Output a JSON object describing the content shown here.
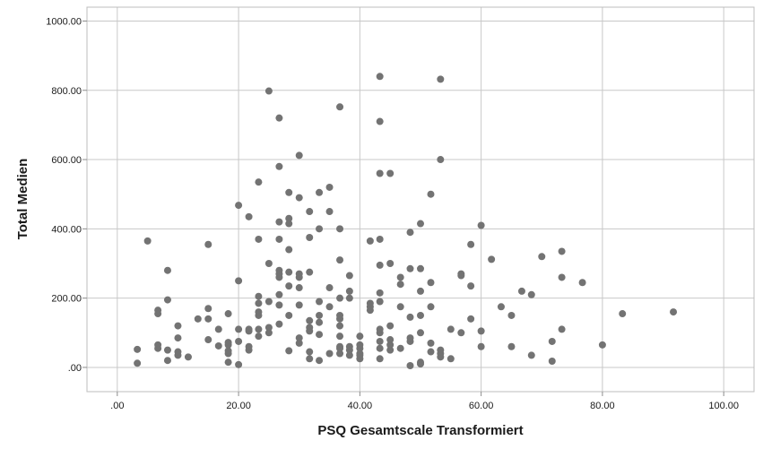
{
  "chart_data": {
    "type": "scatter",
    "title": "",
    "xlabel": "PSQ Gesamtscale Transformiert",
    "ylabel": "Total Medien",
    "xlim": [
      -5,
      105
    ],
    "ylim": [
      -70,
      1040
    ],
    "grid": true,
    "marker_color": "#737373",
    "grid_color": "#c8c8c8",
    "xticks": [
      0,
      20,
      40,
      60,
      80,
      100
    ],
    "xtick_labels": [
      ".00",
      "20.00",
      "40.00",
      "60.00",
      "80.00",
      "100.00"
    ],
    "yticks": [
      0,
      200,
      400,
      600,
      800,
      1000
    ],
    "ytick_labels": [
      ".00",
      "200.00",
      "400.00",
      "600.00",
      "800.00",
      "1000.00"
    ],
    "points": [
      [
        3.3,
        12
      ],
      [
        3.3,
        52
      ],
      [
        5,
        365
      ],
      [
        6.7,
        55
      ],
      [
        6.7,
        65
      ],
      [
        6.7,
        155
      ],
      [
        6.7,
        165
      ],
      [
        8.3,
        20
      ],
      [
        8.3,
        50
      ],
      [
        8.3,
        195
      ],
      [
        8.3,
        280
      ],
      [
        10,
        35
      ],
      [
        10,
        45
      ],
      [
        10,
        85
      ],
      [
        10,
        120
      ],
      [
        11.7,
        30
      ],
      [
        13.3,
        140
      ],
      [
        15,
        80
      ],
      [
        15,
        140
      ],
      [
        15,
        170
      ],
      [
        15,
        355
      ],
      [
        16.7,
        62
      ],
      [
        16.7,
        110
      ],
      [
        18.3,
        15
      ],
      [
        18.3,
        40
      ],
      [
        18.3,
        48
      ],
      [
        18.3,
        65
      ],
      [
        18.3,
        72
      ],
      [
        18.3,
        155
      ],
      [
        20,
        8
      ],
      [
        20,
        75
      ],
      [
        20,
        110
      ],
      [
        20,
        250
      ],
      [
        20,
        468
      ],
      [
        21.7,
        50
      ],
      [
        21.7,
        60
      ],
      [
        21.7,
        105
      ],
      [
        21.7,
        110
      ],
      [
        21.7,
        435
      ],
      [
        23.3,
        90
      ],
      [
        23.3,
        110
      ],
      [
        23.3,
        150
      ],
      [
        23.3,
        160
      ],
      [
        23.3,
        185
      ],
      [
        23.3,
        205
      ],
      [
        23.3,
        370
      ],
      [
        23.3,
        535
      ],
      [
        25,
        100
      ],
      [
        25,
        115
      ],
      [
        25,
        190
      ],
      [
        25,
        300
      ],
      [
        25,
        798
      ],
      [
        26.7,
        125
      ],
      [
        26.7,
        180
      ],
      [
        26.7,
        210
      ],
      [
        26.7,
        260
      ],
      [
        26.7,
        270
      ],
      [
        26.7,
        280
      ],
      [
        26.7,
        370
      ],
      [
        26.7,
        420
      ],
      [
        26.7,
        580
      ],
      [
        26.7,
        720
      ],
      [
        28.3,
        48
      ],
      [
        28.3,
        150
      ],
      [
        28.3,
        235
      ],
      [
        28.3,
        275
      ],
      [
        28.3,
        340
      ],
      [
        28.3,
        415
      ],
      [
        28.3,
        430
      ],
      [
        28.3,
        505
      ],
      [
        30,
        70
      ],
      [
        30,
        85
      ],
      [
        30,
        180
      ],
      [
        30,
        230
      ],
      [
        30,
        260
      ],
      [
        30,
        270
      ],
      [
        30,
        490
      ],
      [
        30,
        612
      ],
      [
        31.7,
        25
      ],
      [
        31.7,
        45
      ],
      [
        31.7,
        105
      ],
      [
        31.7,
        115
      ],
      [
        31.7,
        135
      ],
      [
        31.7,
        275
      ],
      [
        31.7,
        375
      ],
      [
        31.7,
        450
      ],
      [
        33.3,
        20
      ],
      [
        33.3,
        95
      ],
      [
        33.3,
        130
      ],
      [
        33.3,
        150
      ],
      [
        33.3,
        190
      ],
      [
        33.3,
        400
      ],
      [
        33.3,
        505
      ],
      [
        35,
        40
      ],
      [
        35,
        175
      ],
      [
        35,
        230
      ],
      [
        35,
        450
      ],
      [
        35,
        520
      ],
      [
        36.7,
        40
      ],
      [
        36.7,
        55
      ],
      [
        36.7,
        60
      ],
      [
        36.7,
        90
      ],
      [
        36.7,
        120
      ],
      [
        36.7,
        140
      ],
      [
        36.7,
        150
      ],
      [
        36.7,
        200
      ],
      [
        36.7,
        310
      ],
      [
        36.7,
        400
      ],
      [
        36.7,
        752
      ],
      [
        38.3,
        35
      ],
      [
        38.3,
        50
      ],
      [
        38.3,
        60
      ],
      [
        38.3,
        200
      ],
      [
        38.3,
        220
      ],
      [
        38.3,
        265
      ],
      [
        40,
        25
      ],
      [
        40,
        35
      ],
      [
        40,
        40
      ],
      [
        40,
        55
      ],
      [
        40,
        65
      ],
      [
        40,
        90
      ],
      [
        41.7,
        165
      ],
      [
        41.7,
        175
      ],
      [
        41.7,
        185
      ],
      [
        41.7,
        365
      ],
      [
        43.3,
        25
      ],
      [
        43.3,
        55
      ],
      [
        43.3,
        75
      ],
      [
        43.3,
        100
      ],
      [
        43.3,
        110
      ],
      [
        43.3,
        190
      ],
      [
        43.3,
        215
      ],
      [
        43.3,
        295
      ],
      [
        43.3,
        370
      ],
      [
        43.3,
        560
      ],
      [
        43.3,
        710
      ],
      [
        43.3,
        840
      ],
      [
        45,
        50
      ],
      [
        45,
        65
      ],
      [
        45,
        80
      ],
      [
        45,
        120
      ],
      [
        45,
        300
      ],
      [
        45,
        560
      ],
      [
        46.7,
        55
      ],
      [
        46.7,
        175
      ],
      [
        46.7,
        240
      ],
      [
        46.7,
        260
      ],
      [
        48.3,
        5
      ],
      [
        48.3,
        75
      ],
      [
        48.3,
        85
      ],
      [
        48.3,
        145
      ],
      [
        48.3,
        285
      ],
      [
        48.3,
        390
      ],
      [
        50,
        10
      ],
      [
        50,
        15
      ],
      [
        50,
        100
      ],
      [
        50,
        150
      ],
      [
        50,
        220
      ],
      [
        50,
        285
      ],
      [
        50,
        415
      ],
      [
        51.7,
        45
      ],
      [
        51.7,
        70
      ],
      [
        51.7,
        175
      ],
      [
        51.7,
        245
      ],
      [
        51.7,
        500
      ],
      [
        53.3,
        30
      ],
      [
        53.3,
        40
      ],
      [
        53.3,
        50
      ],
      [
        53.3,
        600
      ],
      [
        53.3,
        832
      ],
      [
        55,
        25
      ],
      [
        55,
        110
      ],
      [
        56.7,
        100
      ],
      [
        56.7,
        265
      ],
      [
        56.7,
        270
      ],
      [
        58.3,
        140
      ],
      [
        58.3,
        235
      ],
      [
        58.3,
        355
      ],
      [
        60,
        60
      ],
      [
        60,
        105
      ],
      [
        60,
        410
      ],
      [
        61.7,
        312
      ],
      [
        63.3,
        175
      ],
      [
        65,
        60
      ],
      [
        65,
        150
      ],
      [
        66.7,
        220
      ],
      [
        68.3,
        35
      ],
      [
        68.3,
        210
      ],
      [
        70,
        320
      ],
      [
        71.7,
        18
      ],
      [
        71.7,
        75
      ],
      [
        73.3,
        110
      ],
      [
        73.3,
        260
      ],
      [
        73.3,
        335
      ],
      [
        76.7,
        245
      ],
      [
        80,
        65
      ],
      [
        83.3,
        155
      ],
      [
        91.7,
        160
      ]
    ]
  }
}
